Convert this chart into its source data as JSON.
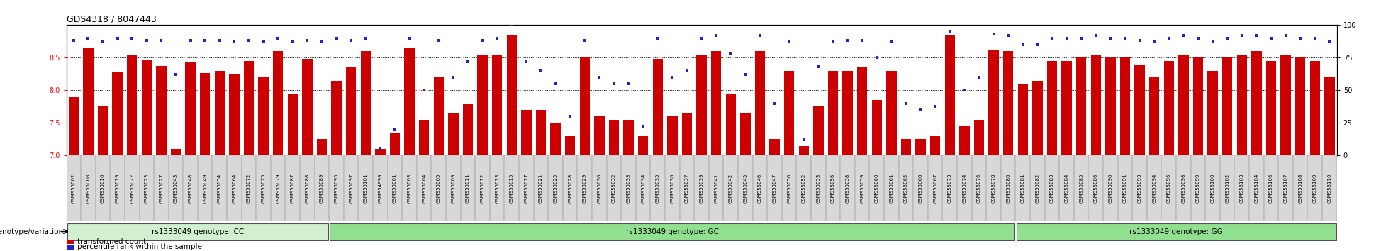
{
  "title": "GDS4318 / 8047443",
  "samples_cc": [
    "GSM955002",
    "GSM955008",
    "GSM955016",
    "GSM955019",
    "GSM955022",
    "GSM955023",
    "GSM955027",
    "GSM955043",
    "GSM955048",
    "GSM955049",
    "GSM955054",
    "GSM955064",
    "GSM955072",
    "GSM955075",
    "GSM955079",
    "GSM955087",
    "GSM955088",
    "GSM955089"
  ],
  "samples_gc": [
    "GSM955095",
    "GSM955097",
    "GSM955101",
    "GSM954999",
    "GSM955001",
    "GSM955003",
    "GSM955004",
    "GSM955005",
    "GSM955009",
    "GSM955011",
    "GSM955012",
    "GSM955013",
    "GSM955015",
    "GSM955017",
    "GSM955021",
    "GSM955025",
    "GSM955028",
    "GSM955029",
    "GSM955030",
    "GSM955032",
    "GSM955033",
    "GSM955034",
    "GSM955035",
    "GSM955036",
    "GSM955037",
    "GSM955039",
    "GSM955041",
    "GSM955042",
    "GSM955045",
    "GSM955046",
    "GSM955047",
    "GSM955050",
    "GSM955052",
    "GSM955053",
    "GSM955056",
    "GSM955058",
    "GSM955059",
    "GSM955060",
    "GSM955061",
    "GSM955065",
    "GSM955066",
    "GSM955067",
    "GSM955073",
    "GSM955074",
    "GSM955076",
    "GSM955078",
    "GSM955080"
  ],
  "samples_gg": [
    "GSM955081",
    "GSM955082",
    "GSM955083",
    "GSM955084",
    "GSM955085",
    "GSM955086",
    "GSM955090",
    "GSM955091",
    "GSM955093",
    "GSM955094",
    "GSM955096",
    "GSM955098",
    "GSM955099",
    "GSM955100",
    "GSM955102",
    "GSM955103",
    "GSM955104",
    "GSM955106",
    "GSM955107",
    "GSM955108",
    "GSM955109",
    "GSM955110"
  ],
  "bars_cc": [
    7.9,
    8.65,
    7.75,
    8.28,
    8.55,
    8.47,
    8.37,
    7.1,
    8.43,
    8.27,
    8.3,
    8.25,
    8.45,
    8.2,
    8.6,
    7.95,
    8.48,
    7.25
  ],
  "bars_gc": [
    8.15,
    8.35,
    8.6,
    7.1,
    7.35,
    8.65,
    7.55,
    8.2,
    7.65,
    7.8,
    8.55,
    8.55,
    8.85,
    7.7,
    7.7,
    7.5,
    7.3,
    8.5,
    7.6,
    7.55,
    7.55,
    7.3,
    8.48,
    7.6,
    7.65,
    8.55,
    8.6,
    7.95,
    7.65,
    8.6,
    7.25,
    8.3,
    7.15,
    7.75,
    8.3,
    8.3,
    8.35,
    7.85,
    8.3,
    7.25,
    7.25,
    7.3,
    8.85,
    7.45,
    7.55,
    8.62,
    8.6
  ],
  "bars_gg": [
    8.1,
    8.15,
    8.45,
    8.45,
    8.5,
    8.55,
    8.5,
    8.5,
    8.4,
    8.2,
    8.45,
    8.55,
    8.5,
    8.3,
    8.5,
    8.55,
    8.6,
    8.45,
    8.55,
    8.5,
    8.45,
    8.2
  ],
  "dots_cc": [
    88,
    90,
    87,
    90,
    90,
    88,
    88,
    62,
    88,
    88,
    88,
    87,
    88,
    87,
    90,
    87,
    88,
    87
  ],
  "dots_gc": [
    90,
    88,
    90,
    5,
    20,
    90,
    50,
    88,
    60,
    72,
    88,
    90,
    100,
    72,
    65,
    55,
    30,
    88,
    60,
    55,
    55,
    22,
    90,
    60,
    65,
    90,
    92,
    78,
    62,
    92,
    40,
    87,
    12,
    68,
    87,
    88,
    88,
    75,
    87,
    40,
    35,
    38,
    95,
    50,
    60,
    93,
    92
  ],
  "dots_gg": [
    85,
    85,
    90,
    90,
    90,
    92,
    90,
    90,
    88,
    87,
    90,
    92,
    90,
    87,
    90,
    92,
    92,
    90,
    92,
    90,
    90,
    87
  ],
  "bar_color": "#cc0000",
  "dot_color": "#2020cc",
  "ylim_left": [
    7.0,
    9.0
  ],
  "ylim_right": [
    0,
    100
  ],
  "yticks_left": [
    7.0,
    7.5,
    8.0,
    8.5
  ],
  "yticks_right": [
    0,
    25,
    50,
    75,
    100
  ],
  "cc_label": "rs1333049 genotype: CC",
  "gc_label": "rs1333049 genotype: GC",
  "gg_label": "rs1333049 genotype: GG",
  "cc_color": "#d0f0d0",
  "gc_color": "#90e090",
  "gg_color": "#90e090",
  "legend_bar": "transformed count",
  "legend_dot": "percentile rank within the sample",
  "title_fontsize": 9,
  "tick_fontsize": 5.0,
  "label_fontsize": 7.5,
  "band_fontsize": 7.5,
  "legend_fontsize": 7.5
}
